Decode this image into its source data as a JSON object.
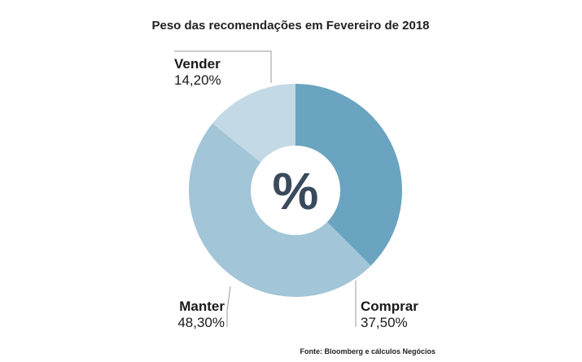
{
  "chart_data": {
    "type": "pie",
    "title": "Peso das recomendações em Fevereiro de 2018",
    "center_label": "%",
    "slices": [
      {
        "label": "Comprar",
        "value": 37.5,
        "value_label": "37,50%",
        "color": "#6aa4c0"
      },
      {
        "label": "Manter",
        "value": 48.3,
        "value_label": "48,30%",
        "color": "#a2c5d7"
      },
      {
        "label": "Vender",
        "value": 14.2,
        "value_label": "14,20%",
        "color": "#c3d9e5"
      }
    ],
    "source": "Fonte: Bloomberg e cálculos Negócios"
  }
}
